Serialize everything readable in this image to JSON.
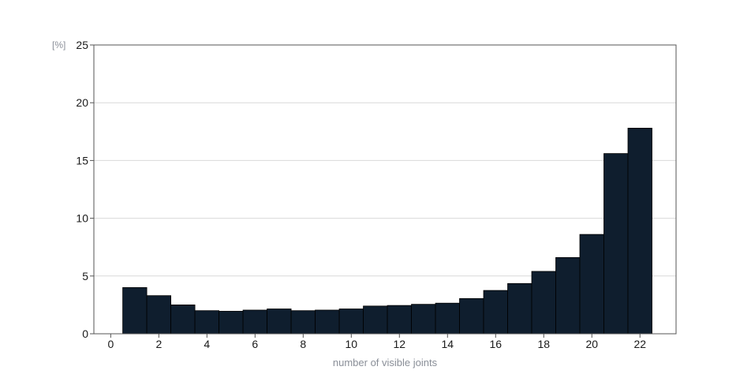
{
  "chart_data": {
    "type": "bar",
    "title": "",
    "xlabel": "number of visible joints",
    "ylabel": "",
    "y_unit": "[%]",
    "bins": [
      1,
      2,
      3,
      4,
      5,
      6,
      7,
      8,
      9,
      10,
      11,
      12,
      13,
      14,
      15,
      16,
      17,
      18,
      19,
      20,
      21,
      22
    ],
    "values": [
      4.0,
      3.3,
      2.5,
      2.0,
      1.95,
      2.05,
      2.15,
      2.0,
      2.05,
      2.15,
      2.4,
      2.45,
      2.55,
      2.65,
      3.05,
      3.75,
      4.35,
      5.4,
      6.6,
      8.6,
      15.6,
      17.8
    ],
    "xlim": [
      -0.7,
      23.5
    ],
    "ylim": [
      0,
      25
    ],
    "xticks": [
      "0",
      "2",
      "4",
      "6",
      "8",
      "10",
      "12",
      "14",
      "16",
      "18",
      "20",
      "22"
    ],
    "yticks": [
      "0",
      "5",
      "10",
      "15",
      "20",
      "25"
    ],
    "grid": "horizontal",
    "bar_color": "#0f1e2e",
    "grid_color": "#d9d9d9"
  }
}
